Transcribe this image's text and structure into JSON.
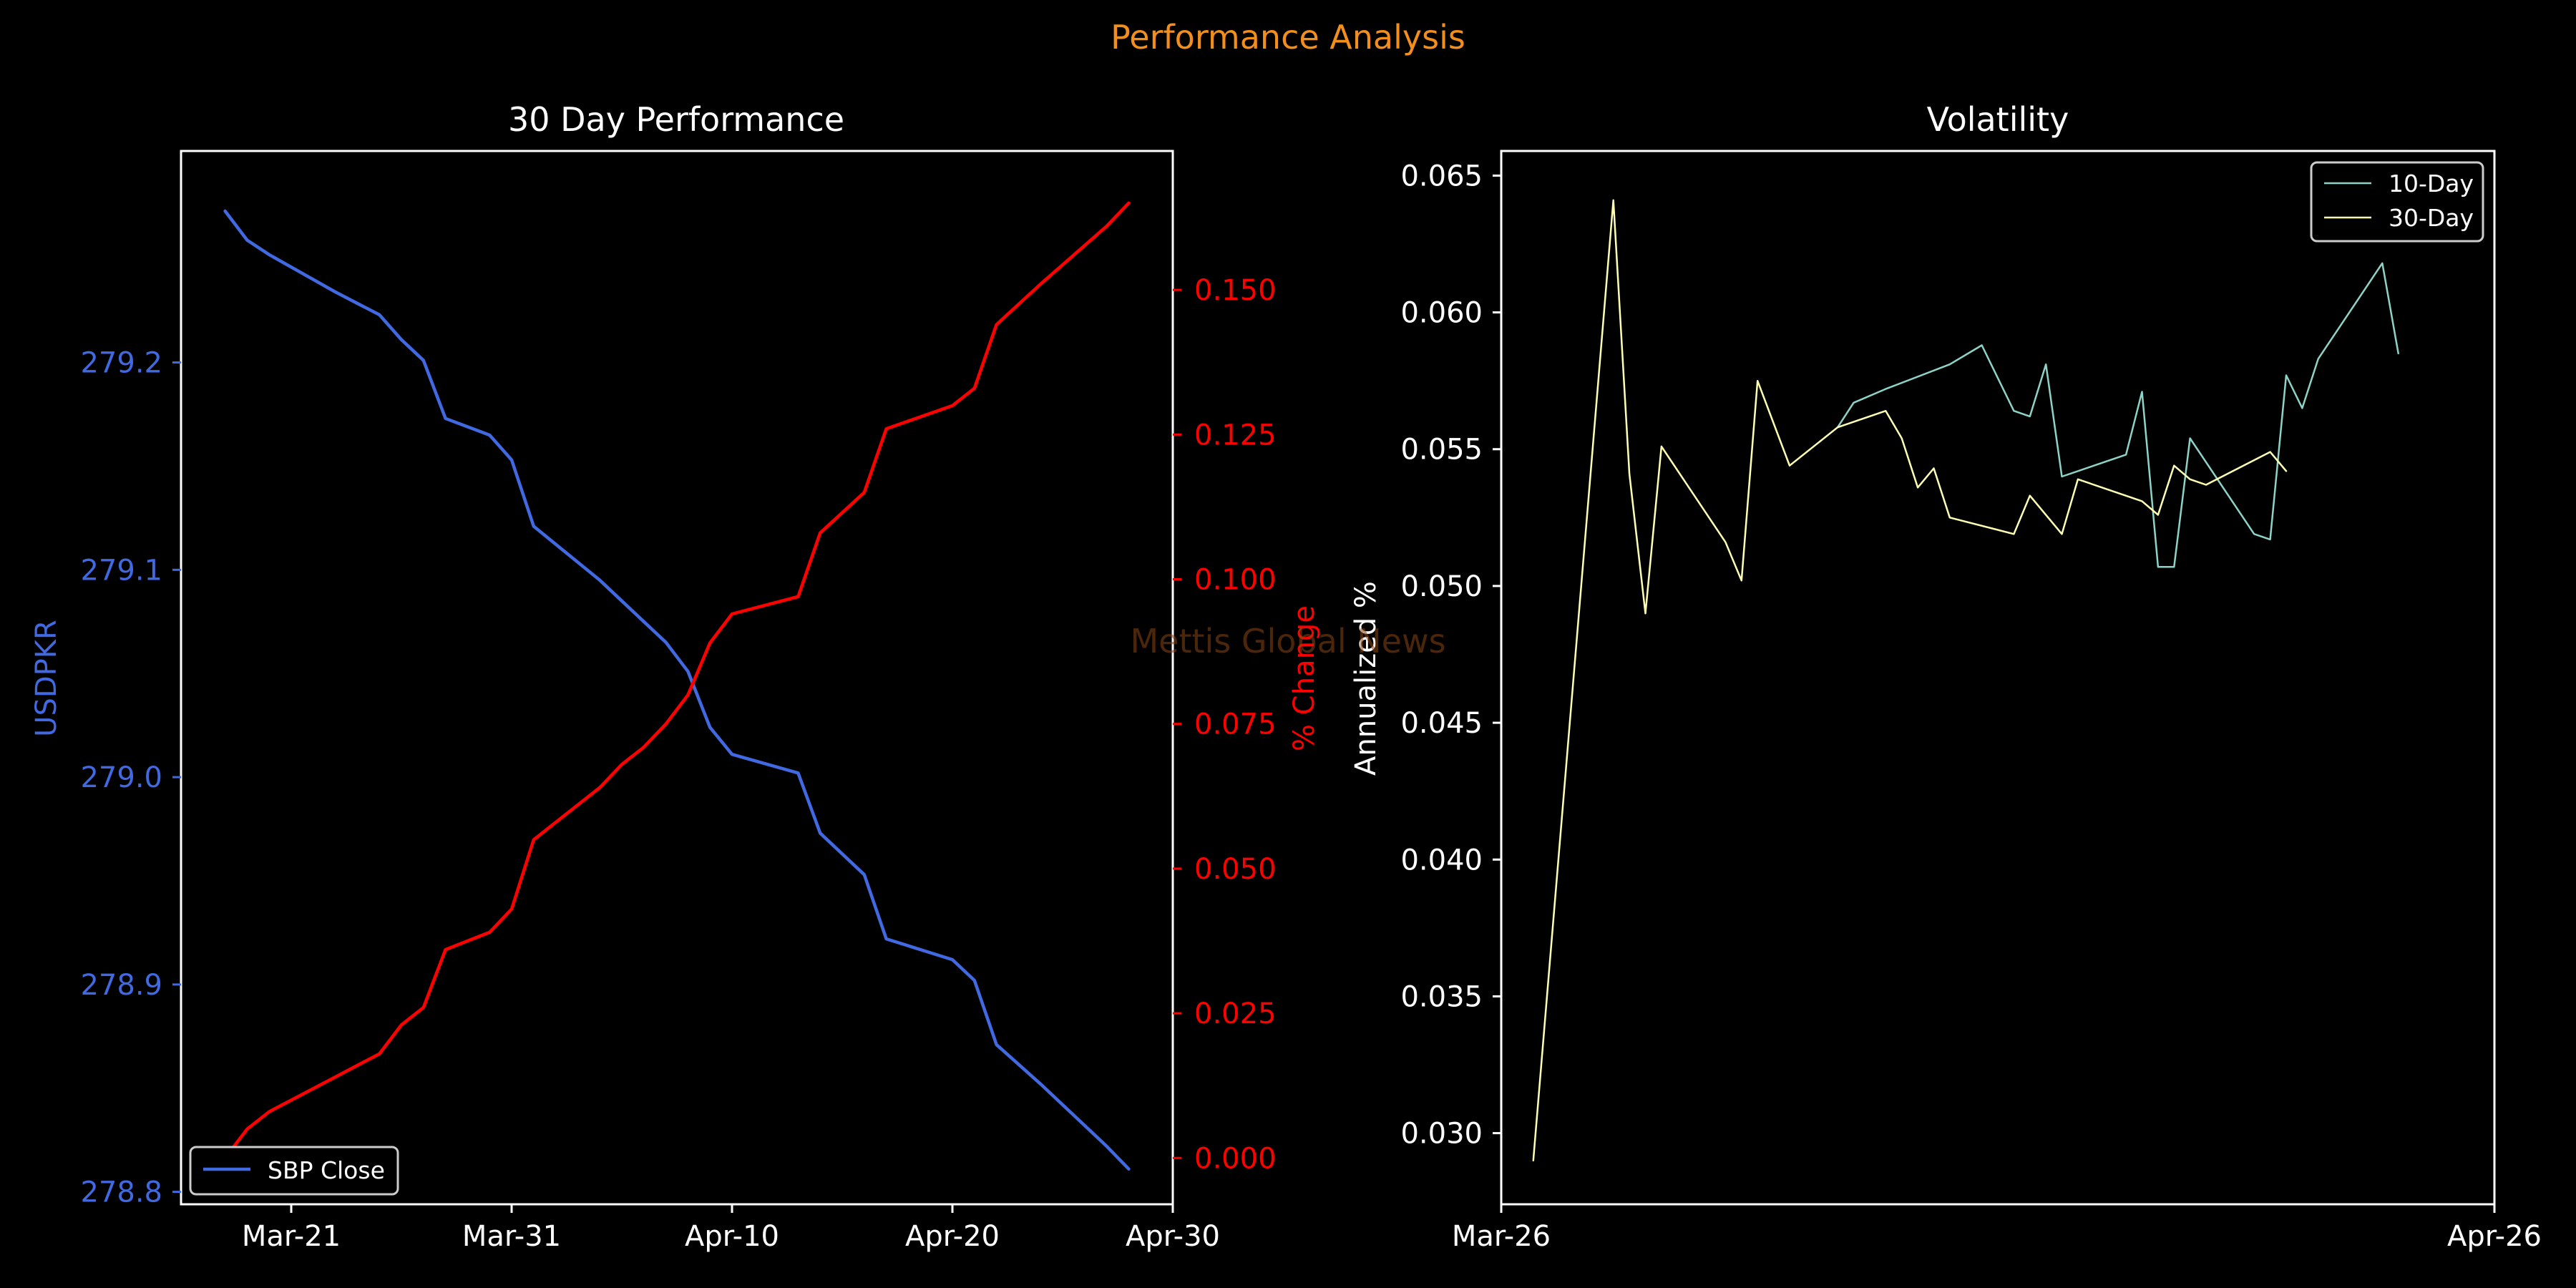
{
  "suptitle": "Performance Analysis",
  "watermark": "Mettis Global News",
  "colors": {
    "background": "#000000",
    "foreground": "#ffffff",
    "suptitle": "#f28e1c",
    "price": "#4169e1",
    "pct_change": "#ff0000",
    "vol10": "#8dd3c7",
    "vol30": "#ffffb3",
    "watermark": "#8b4513"
  },
  "chart_data": [
    {
      "type": "line",
      "title": "30 Day Performance",
      "ylabel": "USDPKR",
      "y2label": "% Change",
      "x_axis": "date",
      "xlim": [
        "2024-03-16",
        "2024-04-30"
      ],
      "xticks": [
        {
          "date": "2024-03-21",
          "label": "Mar-21"
        },
        {
          "date": "2024-03-31",
          "label": "Mar-31"
        },
        {
          "date": "2024-04-10",
          "label": "Apr-10"
        },
        {
          "date": "2024-04-20",
          "label": "Apr-20"
        },
        {
          "date": "2024-04-30",
          "label": "Apr-30"
        }
      ],
      "ylim": [
        278.794,
        279.302
      ],
      "yticks": [
        "278.8",
        "278.9",
        "279.0",
        "279.1",
        "279.2"
      ],
      "y2lim": [
        -0.008,
        0.174
      ],
      "y2ticks": [
        "0.000",
        "0.025",
        "0.050",
        "0.075",
        "0.100",
        "0.125",
        "0.150"
      ],
      "legend": {
        "position": "lower-left",
        "entries": [
          "SBP Close"
        ]
      },
      "series": [
        {
          "name": "SBP Close",
          "axis": "left",
          "points": [
            [
              "2024-03-18",
              279.273
            ],
            [
              "2024-03-19",
              279.259
            ],
            [
              "2024-03-20",
              279.252
            ],
            [
              "2024-03-23",
              279.234
            ],
            [
              "2024-03-25",
              279.223
            ],
            [
              "2024-03-26",
              279.211
            ],
            [
              "2024-03-27",
              279.201
            ],
            [
              "2024-03-28",
              279.173
            ],
            [
              "2024-03-30",
              279.165
            ],
            [
              "2024-03-31",
              279.153
            ],
            [
              "2024-04-01",
              279.121
            ],
            [
              "2024-04-04",
              279.095
            ],
            [
              "2024-04-05",
              279.085
            ],
            [
              "2024-04-06",
              279.075
            ],
            [
              "2024-04-07",
              279.065
            ],
            [
              "2024-04-08",
              279.051
            ],
            [
              "2024-04-09",
              279.024
            ],
            [
              "2024-04-10",
              279.011
            ],
            [
              "2024-04-13",
              279.002
            ],
            [
              "2024-04-14",
              278.973
            ],
            [
              "2024-04-16",
              278.953
            ],
            [
              "2024-04-17",
              278.922
            ],
            [
              "2024-04-20",
              278.912
            ],
            [
              "2024-04-21",
              278.902
            ],
            [
              "2024-04-22",
              278.871
            ],
            [
              "2024-04-24",
              278.852
            ],
            [
              "2024-04-27",
              278.822
            ],
            [
              "2024-04-28",
              278.811
            ]
          ]
        },
        {
          "name": "% Change",
          "axis": "right",
          "points": [
            [
              "2024-03-18",
              0.0
            ],
            [
              "2024-03-19",
              0.005
            ],
            [
              "2024-03-20",
              0.008
            ],
            [
              "2024-03-23",
              0.014
            ],
            [
              "2024-03-25",
              0.018
            ],
            [
              "2024-03-26",
              0.023
            ],
            [
              "2024-03-27",
              0.026
            ],
            [
              "2024-03-28",
              0.036
            ],
            [
              "2024-03-30",
              0.039
            ],
            [
              "2024-03-31",
              0.043
            ],
            [
              "2024-04-01",
              0.055
            ],
            [
              "2024-04-04",
              0.064
            ],
            [
              "2024-04-05",
              0.068
            ],
            [
              "2024-04-06",
              0.071
            ],
            [
              "2024-04-07",
              0.075
            ],
            [
              "2024-04-08",
              0.08
            ],
            [
              "2024-04-09",
              0.089
            ],
            [
              "2024-04-10",
              0.094
            ],
            [
              "2024-04-13",
              0.097
            ],
            [
              "2024-04-14",
              0.108
            ],
            [
              "2024-04-16",
              0.115
            ],
            [
              "2024-04-17",
              0.126
            ],
            [
              "2024-04-20",
              0.13
            ],
            [
              "2024-04-21",
              0.133
            ],
            [
              "2024-04-22",
              0.144
            ],
            [
              "2024-04-24",
              0.151
            ],
            [
              "2024-04-27",
              0.161
            ],
            [
              "2024-04-28",
              0.165
            ]
          ]
        }
      ]
    },
    {
      "type": "line",
      "title": "Volatility",
      "ylabel": "Annualized %",
      "x_axis": "date",
      "xlim": [
        "2024-03-26",
        "2024-04-26"
      ],
      "xticks": [
        {
          "date": "2024-03-26",
          "label": "Mar-26"
        },
        {
          "date": "2024-04-26",
          "label": "Apr-26"
        }
      ],
      "ylim": [
        0.0274,
        0.0659
      ],
      "yticks": [
        "0.030",
        "0.035",
        "0.040",
        "0.045",
        "0.050",
        "0.055",
        "0.060",
        "0.065"
      ],
      "legend": {
        "position": "top-right",
        "entries": [
          "10-Day",
          "30-Day"
        ]
      },
      "series": [
        {
          "name": "10-Day",
          "points": [
            [
              "2024-04-05T12:00",
              0.0558
            ],
            [
              "2024-04-06T00:00",
              0.0567
            ],
            [
              "2024-04-07T00:00",
              0.0572
            ],
            [
              "2024-04-09T00:00",
              0.0581
            ],
            [
              "2024-04-10T00:00",
              0.0588
            ],
            [
              "2024-04-11T00:00",
              0.0564
            ],
            [
              "2024-04-11T12:00",
              0.0562
            ],
            [
              "2024-04-12T00:00",
              0.0581
            ],
            [
              "2024-04-12T12:00",
              0.054
            ],
            [
              "2024-04-13T12:00",
              0.0544
            ],
            [
              "2024-04-14T12:00",
              0.0548
            ],
            [
              "2024-04-15T00:00",
              0.0571
            ],
            [
              "2024-04-15T12:00",
              0.0507
            ],
            [
              "2024-04-16T00:00",
              0.0507
            ],
            [
              "2024-04-16T12:00",
              0.0554
            ],
            [
              "2024-04-18T12:00",
              0.0519
            ],
            [
              "2024-04-19T00:00",
              0.0517
            ],
            [
              "2024-04-19T12:00",
              0.0577
            ],
            [
              "2024-04-20T00:00",
              0.0565
            ],
            [
              "2024-04-20T12:00",
              0.0583
            ],
            [
              "2024-04-22T12:00",
              0.0618
            ],
            [
              "2024-04-23T00:00",
              0.0585
            ]
          ]
        },
        {
          "name": "30-Day",
          "points": [
            [
              "2024-03-27T00:00",
              0.029
            ],
            [
              "2024-03-29T12:00",
              0.0641
            ],
            [
              "2024-03-30T00:00",
              0.0541
            ],
            [
              "2024-03-30T12:00",
              0.049
            ],
            [
              "2024-03-31T00:00",
              0.0551
            ],
            [
              "2024-04-02T00:00",
              0.0516
            ],
            [
              "2024-04-02T12:00",
              0.0502
            ],
            [
              "2024-04-03T00:00",
              0.0575
            ],
            [
              "2024-04-04T00:00",
              0.0544
            ],
            [
              "2024-04-05T12:00",
              0.0558
            ],
            [
              "2024-04-07T00:00",
              0.0564
            ],
            [
              "2024-04-07T12:00",
              0.0554
            ],
            [
              "2024-04-08T00:00",
              0.0536
            ],
            [
              "2024-04-08T12:00",
              0.0543
            ],
            [
              "2024-04-09T00:00",
              0.0525
            ],
            [
              "2024-04-11T00:00",
              0.0519
            ],
            [
              "2024-04-11T12:00",
              0.0533
            ],
            [
              "2024-04-12T12:00",
              0.0519
            ],
            [
              "2024-04-13T00:00",
              0.0539
            ],
            [
              "2024-04-15T00:00",
              0.0531
            ],
            [
              "2024-04-15T12:00",
              0.0526
            ],
            [
              "2024-04-16T00:00",
              0.0544
            ],
            [
              "2024-04-16T12:00",
              0.0539
            ],
            [
              "2024-04-17T00:00",
              0.0537
            ],
            [
              "2024-04-19T00:00",
              0.0549
            ],
            [
              "2024-04-19T12:00",
              0.0542
            ]
          ]
        }
      ]
    }
  ]
}
